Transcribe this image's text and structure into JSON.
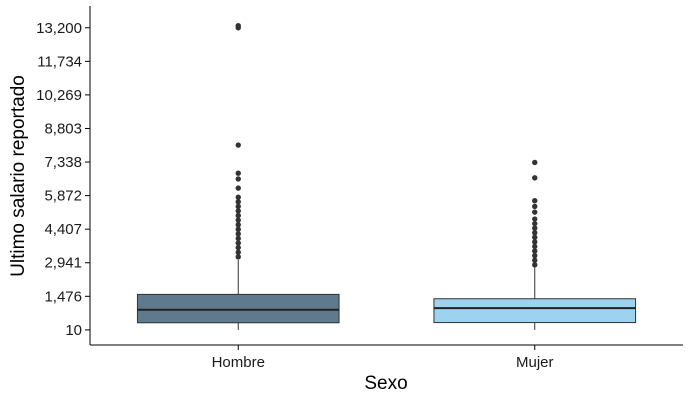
{
  "chart_data": {
    "type": "boxplot",
    "xlabel": "Sexo",
    "ylabel": "Ultimo salario reportado",
    "ylim": [
      -650,
      14150
    ],
    "y_ticks": [
      10,
      1476,
      2941,
      4407,
      5872,
      7338,
      8803,
      10269,
      11734,
      13200
    ],
    "y_tick_labels": [
      "10",
      "1,476",
      "2,941",
      "4,407",
      "5,872",
      "7,338",
      "8,803",
      "10,269",
      "11,734",
      "13,200"
    ],
    "categories": [
      "Hombre",
      "Mujer"
    ],
    "grid": false,
    "legend": "none",
    "series": [
      {
        "category": "Hombre",
        "fill": "#5f7a8c",
        "whisker_low": 10,
        "q1": 320,
        "median": 890,
        "q3": 1560,
        "whisker_high": 3070,
        "outliers": [
          3200,
          3400,
          3600,
          3800,
          4000,
          4200,
          4400,
          4600,
          4800,
          5000,
          5200,
          5400,
          5600,
          5800,
          6200,
          6600,
          6850,
          8080,
          13200,
          13290
        ]
      },
      {
        "category": "Mujer",
        "fill": "#9ed3ef",
        "whisker_low": 10,
        "q1": 330,
        "median": 960,
        "q3": 1370,
        "whisker_high": 2740,
        "outliers": [
          2850,
          3050,
          3250,
          3450,
          3650,
          3850,
          4050,
          4250,
          4450,
          4650,
          4850,
          5150,
          5400,
          5650,
          6650,
          7320
        ]
      }
    ]
  }
}
